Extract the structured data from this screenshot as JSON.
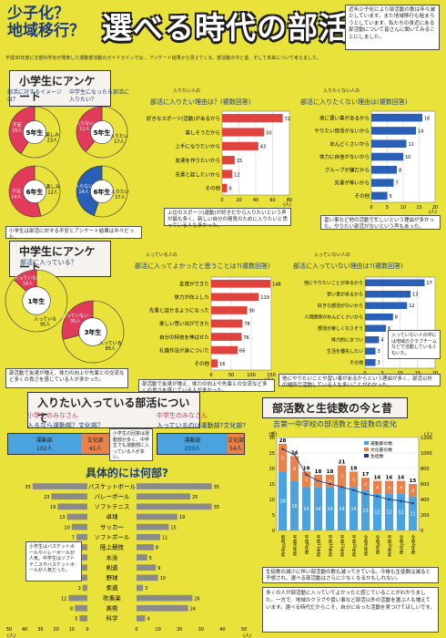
{
  "header": {
    "subtitle_line1": "少子化？",
    "subtitle_line2": "地域移行？",
    "title": "選べる時代の部活動",
    "side_note": "近年少子化により部活動の数は年々減少しています。また地域移行も始まろうとしています。私たちの身近にある部活動について皆さんに聞いてみることにしました。"
  },
  "intro": "平成30年度に文部科学省が発表した運動部活動のガイドラインでは… アンケート結果から見えてくる、部活動の今と昔、そして未来について考えました。",
  "elementary": {
    "banner": "小学生にアンケート",
    "q1": "部活に対するイメージは？",
    "q2": "中学生になったら部活に入りたい？",
    "pies": [
      {
        "grade": "5年生",
        "a_label": "楽しみ",
        "a_count": "23人",
        "b_label": "不安",
        "b_count": "16人",
        "a_frac": 0.59,
        "color_a": "#e8e23a",
        "color_b": "#e23a5a"
      },
      {
        "grade": "5年生",
        "a_label": "入りたい",
        "a_count": "17人",
        "b_label": "入らない",
        "b_count": "11人",
        "a_frac": 0.61,
        "color_a": "#e8e23a",
        "color_b": "#e23a5a"
      },
      {
        "grade": "6年生",
        "a_label": "楽しみ",
        "a_count": "12人",
        "b_label": "不安",
        "b_count": "14人",
        "a_frac": 0.46,
        "color_a": "#e8e23a",
        "color_b": "#e23a5a"
      },
      {
        "grade": "6年生",
        "a_label": "入りたい",
        "a_count": "17人",
        "b_label": "入らない",
        "b_count": "14人",
        "a_frac": 0.55,
        "color_a": "#e8e23a",
        "color_b": "#2a5fb8"
      }
    ],
    "pie_note": "小学生は部活に対する不安とアンケート結果は半々だった。",
    "chart1_title": "部活に入りたい理由は？(複数回答)",
    "chart1_tag": "入りたい人の",
    "chart1_items": [
      "好きなスポーツ(活動)があるから",
      "楽しそうだから",
      "上手になりたいから",
      "友達を作りたいから",
      "先輩と話したいから",
      "その他"
    ],
    "chart1_values": [
      72,
      50,
      43,
      15,
      12,
      6
    ],
    "chart1_axis": [
      "0",
      "20",
      "40",
      "60",
      "80"
    ],
    "chart1_unit": "(人)",
    "chart1_note": "上位のスポーツ(運動)が好きだから入りたいという声が最も多く、新しい自分の発見のために入りたいと思っている人も多かった。",
    "chart2_title": "部活に入りたくない理由は(複数回答)",
    "chart2_tag": "入りたくない人の",
    "chart2_items": [
      "他に習い事があるから",
      "やりたい部活がないから",
      "めんどくさいから",
      "体力に自信がないから",
      "グループが嫌だから",
      "先輩が怖いから",
      "その他"
    ],
    "chart2_values": [
      16,
      14,
      11,
      10,
      8,
      7,
      5
    ],
    "chart2_axis": [
      "0",
      "5",
      "10",
      "15",
      "20"
    ],
    "chart2_unit": "(人)",
    "chart2_note": "習い事など他の活動で忙しいという理由が多かった。やりたい部活がないという声もあった。"
  },
  "junior": {
    "banner": "中学生にアンケート",
    "q": "部活に入っている？",
    "pies": [
      {
        "grade": "1年生",
        "a_label": "入っている",
        "a_count": "95人",
        "b_label": "入っていない",
        "b_count": "14人",
        "a_frac": 0.87
      },
      {
        "grade": "3年生",
        "a_label": "入っている",
        "a_count": "85人",
        "b_label": "入っていない",
        "b_count": "35人",
        "a_frac": 0.71
      }
    ],
    "chart1_tag": "入っている人の",
    "chart1_title": "部活に入ってよかったと思うことは?(複数回答)",
    "chart1_items": [
      "友達ができた",
      "体力が向上した",
      "先輩と話せるようになった",
      "楽しい思い出ができた",
      "自分の特技を伸ばせた",
      "礼儀作法が身についた",
      "その他"
    ],
    "chart1_values": [
      148,
      119,
      90,
      78,
      76,
      66,
      16
    ],
    "chart1_axis": [
      "0",
      "50",
      "100",
      "150"
    ],
    "chart1_unit": "(人)",
    "chart1_note": "部活動で友達が増え、体力の向上や先輩との交流など多くの良さを感じている人が多かった。",
    "chart2_tag": "入っていない人の",
    "chart2_title": "部活に入っていない理由は?(複数回答)",
    "chart2_items": [
      "他にやりたいことがあるから",
      "習い事があるから",
      "好きな部活がないから",
      "人間関係がめんどくさいから",
      "部活が楽しくなさそう",
      "体力的にきつい",
      "生活を優先したい",
      "その他"
    ],
    "chart2_values": [
      17,
      13,
      12,
      8,
      6,
      4,
      3,
      3
    ],
    "chart2_axis": [
      "0",
      "5",
      "10",
      "15",
      "20"
    ],
    "chart2_unit": "(人)",
    "note_box": "入っていない人の中には地域のクラブチームなどで活動している人もいた。",
    "chart2_note": "他にやりたいことや習い事があるからという理由が多く、部活以外の場所で活動している人も多いことがわかった。"
  },
  "wish": {
    "banner": "入りたい入っている部活について",
    "elem_label": "小学生のみなさん",
    "elem_q": "入るなら運動部？文化部？",
    "elem_a": "運動部",
    "elem_a_count": "102人",
    "elem_b": "文化部",
    "elem_b_count": "41人",
    "elem_a_frac": 0.71,
    "mid_note": "小学生の回答は運動部が多く、中学生でも運動部に入っている人が多い。",
    "jr_label": "中学生のみなさん",
    "jr_q": "入っているのは運動部?文化部?",
    "jr_a": "運動部",
    "jr_a_count": "233人",
    "jr_b": "文化部",
    "jr_b_count": "54人",
    "jr_a_frac": 0.81,
    "detail_title": "具体的には何部?",
    "clubs": [
      "バスケットボール",
      "バレーボール",
      "ソフトテニス",
      "卓球",
      "サッカー",
      "ソフトボール",
      "陸上競技",
      "水泳",
      "剣道",
      "野球",
      "柔道",
      "吹奏楽",
      "美術",
      "科学"
    ],
    "elem_values": [
      35,
      23,
      19,
      13,
      10,
      7,
      6,
      5,
      4,
      4,
      3,
      12,
      8,
      5
    ],
    "jr_values": [
      35,
      25,
      35,
      19,
      15,
      11,
      8,
      5,
      9,
      10,
      3,
      26,
      24,
      4
    ],
    "left_axis": [
      "50",
      "40",
      "30",
      "20",
      "10",
      "0"
    ],
    "right_axis": [
      "0",
      "10",
      "20",
      "30",
      "40",
      "50"
    ],
    "unit": "(人)",
    "left_note": "小学生はバスケットボールやバレーボールが人気。中学生はソフトテニスやバスケットボールが人気だった。"
  },
  "history": {
    "banner": "部活数と生徒数の今と昔",
    "chart_title": "吉第一中学校の部活数と生徒数の変化",
    "legend": [
      "運動部の数",
      "文化部の数",
      "生徒数"
    ],
    "left_unit": "(部)",
    "right_unit": "(人)",
    "note": "生徒数の減少に伴い部活動の数も減ってきている。今後も生徒数は減ると予想され、選べる部活動はさらに少なくなるかもしれない。"
  },
  "chart_data": {
    "type": "bar",
    "title": "吉第一中学校の部活数と生徒数の変化",
    "categories": [
      "昭和59年度",
      "平成元年度",
      "平成6年度",
      "平成11年度",
      "平成16年度",
      "平成21年度",
      "平成26年度",
      "令和元年度",
      "令和6年度",
      "平成30年度",
      "令和2年度",
      "令和4年度"
    ],
    "series": [
      {
        "name": "運動部の数",
        "values": [
          19,
          16,
          14,
          14,
          14,
          14,
          14,
          13,
          12,
          12,
          12,
          11
        ]
      },
      {
        "name": "文化部の数",
        "values": [
          9,
          8,
          5,
          4,
          4,
          7,
          5,
          4,
          4,
          4,
          4,
          4
        ]
      },
      {
        "name": "生徒数",
        "values": [
          1050,
          980,
          720,
          640,
          600,
          560,
          520,
          470,
          440,
          400,
          380,
          350
        ]
      }
    ],
    "totals": [
      "28",
      "24",
      "19",
      "18",
      "18",
      "21",
      "19",
      "17",
      "16",
      "16",
      "16",
      "15"
    ],
    "ylim": [
      0,
      30
    ],
    "y2lim": [
      0,
      1200
    ],
    "y_ticks": [
      "0",
      "5",
      "10",
      "15",
      "20",
      "25",
      "30"
    ],
    "y2_ticks": [
      "0",
      "200",
      "400",
      "600",
      "800",
      "1000",
      "1200"
    ]
  },
  "footer": "多くの人が部活動に入っていてよかったと感じていることがわかりました。一方で、地域のクラブや習い事など部活以外の活動を選ぶ人も増えています。選べる時代だからこそ、自分に合った活動を見つけてほしいです。"
}
